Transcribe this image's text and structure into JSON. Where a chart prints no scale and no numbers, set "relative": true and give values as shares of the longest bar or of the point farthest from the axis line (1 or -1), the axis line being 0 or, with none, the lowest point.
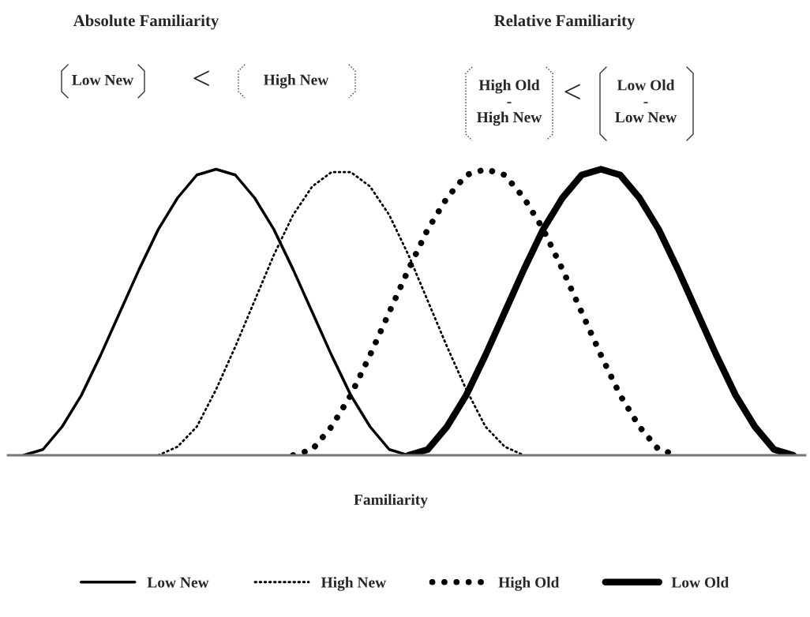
{
  "chart_data": {
    "type": "line",
    "relative": true,
    "xlabel": "Familiarity",
    "legend": "bottom",
    "categories": [
      null,
      null,
      null,
      null,
      null,
      null,
      null,
      null,
      null,
      null,
      null,
      null,
      null,
      null,
      null,
      null,
      null,
      null,
      null,
      null,
      null,
      null,
      null,
      null,
      null,
      null,
      null,
      null,
      null,
      null,
      null,
      null,
      null,
      null,
      null,
      null,
      null,
      null,
      null,
      null,
      null
    ],
    "series": [
      {
        "name": "Low New",
        "color": "#000000",
        "line_style": "solid",
        "values": [
          0,
          0.02,
          0.1,
          0.21,
          0.35,
          0.5,
          0.65,
          0.79,
          0.9,
          0.98,
          1,
          0.98,
          0.9,
          0.79,
          0.65,
          0.5,
          0.35,
          0.21,
          0.1,
          0.02,
          0,
          null,
          null,
          null,
          null,
          null,
          null,
          null,
          null,
          null,
          null,
          null,
          null,
          null,
          null,
          null,
          null,
          null,
          null,
          null,
          null
        ]
      },
      {
        "name": "High New",
        "color": "#000000",
        "line_style": "dotted",
        "values": [
          null,
          null,
          null,
          null,
          null,
          null,
          null,
          0,
          0.03,
          0.1,
          0.23,
          0.38,
          0.54,
          0.7,
          0.84,
          0.94,
          0.99,
          0.99,
          0.94,
          0.84,
          0.7,
          0.54,
          0.38,
          0.23,
          0.1,
          0.03,
          0,
          null,
          null,
          null,
          null,
          null,
          null,
          null,
          null,
          null,
          null,
          null,
          null,
          null,
          null
        ]
      },
      {
        "name": "High Old",
        "color": "#000000",
        "line_style": "dotted",
        "values": [
          null,
          null,
          null,
          null,
          null,
          null,
          null,
          null,
          null,
          null,
          null,
          null,
          null,
          null,
          0,
          0.02,
          0.1,
          0.21,
          0.35,
          0.5,
          0.65,
          0.79,
          0.9,
          0.98,
          1,
          0.98,
          0.9,
          0.79,
          0.65,
          0.5,
          0.35,
          0.21,
          0.1,
          0.02,
          0,
          null,
          null,
          null,
          null,
          null,
          null
        ]
      },
      {
        "name": "Low Old",
        "color": "#000000",
        "line_style": "solid",
        "values": [
          null,
          null,
          null,
          null,
          null,
          null,
          null,
          null,
          null,
          null,
          null,
          null,
          null,
          null,
          null,
          null,
          null,
          null,
          null,
          null,
          0,
          0.02,
          0.1,
          0.21,
          0.35,
          0.5,
          0.65,
          0.79,
          0.9,
          0.98,
          1,
          0.98,
          0.9,
          0.79,
          0.65,
          0.5,
          0.35,
          0.21,
          0.1,
          0.02,
          0
        ]
      }
    ],
    "annotations": [
      "Absolute Familiarity",
      "Relative Familiarity",
      "Low New",
      "<",
      "High New",
      "High Old\n-\nHigh New",
      "<",
      "Low Old\n-\nLow New"
    ]
  }
}
